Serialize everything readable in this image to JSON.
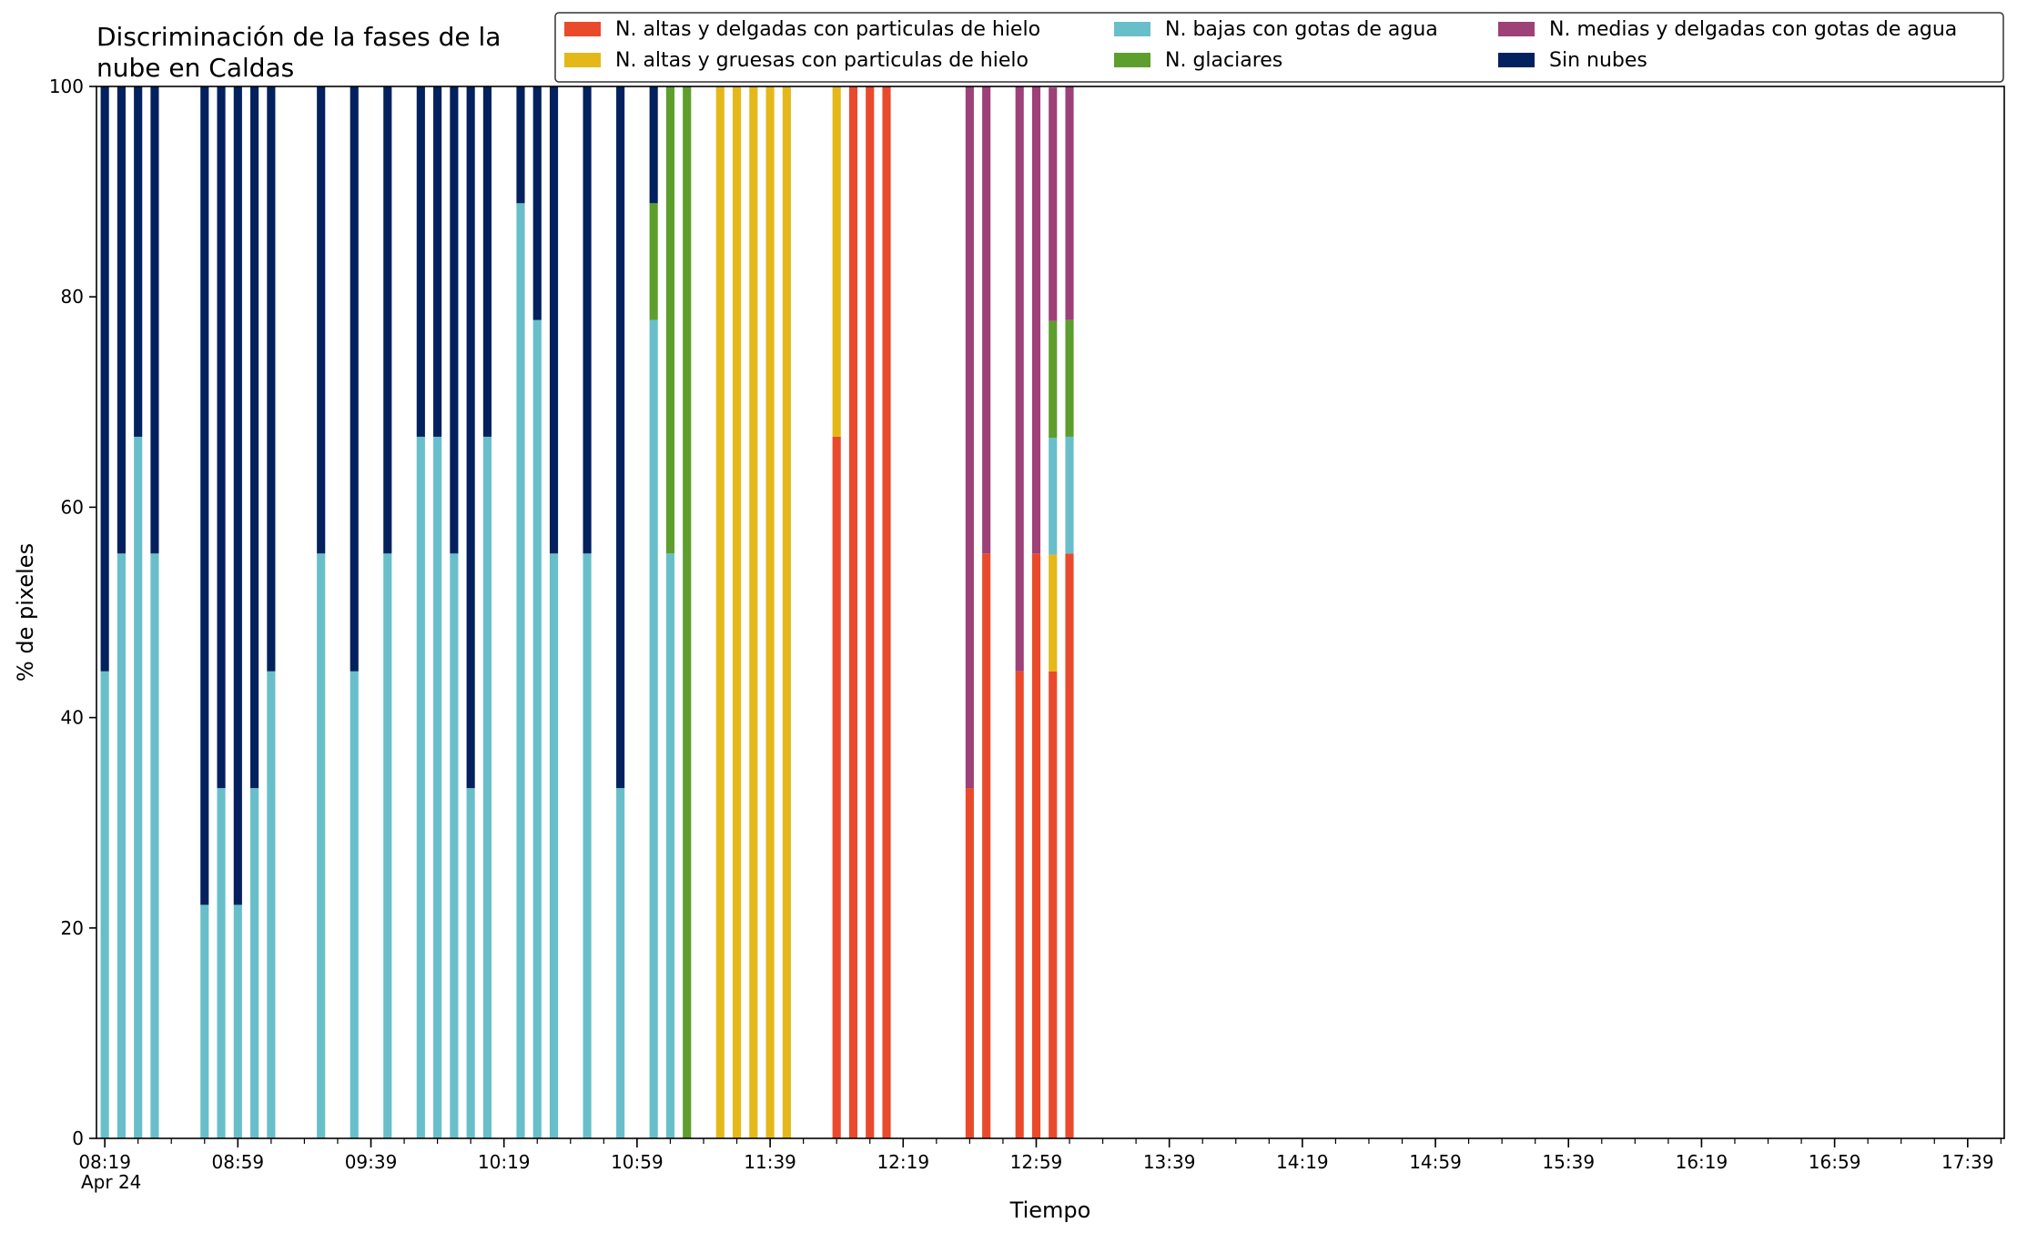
{
  "chart_data": {
    "type": "bar",
    "stacked": true,
    "title_lines": [
      "Discriminación de la fases de la",
      "nube en Caldas"
    ],
    "xlabel": "Tiempo",
    "ylabel": "% de pixeles",
    "ylim": [
      0,
      100
    ],
    "yticks": [
      0,
      20,
      40,
      60,
      80,
      100
    ],
    "grid": false,
    "legend_position": "top-right",
    "x_start": "08:19",
    "x_date_label": "Apr 24",
    "bar_interval_minutes": 5,
    "x_major_ticks": [
      "08:19",
      "08:59",
      "09:39",
      "10:19",
      "10:59",
      "11:39",
      "12:19",
      "12:59",
      "13:39",
      "14:19",
      "14:59",
      "15:39",
      "16:19",
      "16:59",
      "17:39"
    ],
    "x_minor_tick_interval_minutes": 10,
    "x_axis_max": "17:50",
    "series_order": [
      "altas_delgadas",
      "altas_gruesas",
      "bajas",
      "glaciares",
      "medias",
      "sin_nubes"
    ],
    "legend": [
      {
        "key": "altas_delgadas",
        "name": "N. altas y delgadas con particulas de hielo",
        "color": "#ea4a2c"
      },
      {
        "key": "altas_gruesas",
        "name": "N. altas y gruesas con particulas de hielo",
        "color": "#e5b81a"
      },
      {
        "key": "bajas",
        "name": "N. bajas con gotas de agua",
        "color": "#68bfca"
      },
      {
        "key": "glaciares",
        "name": "N. glaciares",
        "color": "#5e9e2d"
      },
      {
        "key": "medias",
        "name": "N. medias y delgadas con gotas de agua",
        "color": "#9d4178"
      },
      {
        "key": "sin_nubes",
        "name": "Sin nubes",
        "color": "#03215e"
      }
    ],
    "bars": [
      {
        "time": "08:19",
        "bajas": 44.4,
        "sin_nubes": 55.6
      },
      {
        "time": "08:24",
        "bajas": 55.6,
        "sin_nubes": 44.4
      },
      {
        "time": "08:29",
        "bajas": 66.7,
        "sin_nubes": 33.3
      },
      {
        "time": "08:34",
        "bajas": 55.6,
        "sin_nubes": 44.4
      },
      {
        "time": "08:49",
        "bajas": 22.2,
        "sin_nubes": 77.8
      },
      {
        "time": "08:54",
        "bajas": 33.3,
        "sin_nubes": 66.7
      },
      {
        "time": "08:59",
        "bajas": 22.2,
        "sin_nubes": 77.8
      },
      {
        "time": "09:04",
        "bajas": 33.3,
        "sin_nubes": 66.7
      },
      {
        "time": "09:09",
        "bajas": 44.4,
        "sin_nubes": 55.6
      },
      {
        "time": "09:24",
        "bajas": 55.6,
        "sin_nubes": 44.4
      },
      {
        "time": "09:34",
        "bajas": 44.4,
        "sin_nubes": 55.6
      },
      {
        "time": "09:44",
        "bajas": 55.6,
        "sin_nubes": 44.4
      },
      {
        "time": "09:54",
        "bajas": 66.7,
        "sin_nubes": 33.3
      },
      {
        "time": "09:59",
        "bajas": 66.7,
        "sin_nubes": 33.3
      },
      {
        "time": "10:04",
        "bajas": 55.6,
        "sin_nubes": 44.4
      },
      {
        "time": "10:09",
        "bajas": 33.3,
        "sin_nubes": 66.7
      },
      {
        "time": "10:14",
        "bajas": 66.7,
        "sin_nubes": 33.3
      },
      {
        "time": "10:24",
        "bajas": 88.9,
        "sin_nubes": 11.1
      },
      {
        "time": "10:29",
        "bajas": 77.8,
        "sin_nubes": 22.2
      },
      {
        "time": "10:34",
        "bajas": 55.6,
        "sin_nubes": 44.4
      },
      {
        "time": "10:44",
        "bajas": 55.6,
        "sin_nubes": 44.4
      },
      {
        "time": "10:54",
        "bajas": 33.3,
        "sin_nubes": 66.7
      },
      {
        "time": "11:04",
        "bajas": 77.8,
        "glaciares": 11.1,
        "sin_nubes": 11.1
      },
      {
        "time": "11:09",
        "bajas": 55.6,
        "glaciares": 44.4
      },
      {
        "time": "11:14",
        "glaciares": 100
      },
      {
        "time": "11:24",
        "altas_gruesas": 100
      },
      {
        "time": "11:29",
        "altas_gruesas": 100
      },
      {
        "time": "11:34",
        "altas_gruesas": 100
      },
      {
        "time": "11:39",
        "altas_gruesas": 100
      },
      {
        "time": "11:44",
        "altas_gruesas": 100
      },
      {
        "time": "11:59",
        "altas_delgadas": 66.7,
        "altas_gruesas": 33.3
      },
      {
        "time": "12:04",
        "altas_delgadas": 100
      },
      {
        "time": "12:09",
        "altas_delgadas": 100
      },
      {
        "time": "12:14",
        "altas_delgadas": 100
      },
      {
        "time": "12:39",
        "altas_delgadas": 33.3,
        "medias": 66.7
      },
      {
        "time": "12:44",
        "altas_delgadas": 55.6,
        "medias": 44.4
      },
      {
        "time": "12:54",
        "altas_delgadas": 44.4,
        "medias": 55.6
      },
      {
        "time": "12:59",
        "altas_delgadas": 55.6,
        "medias": 44.4
      },
      {
        "time": "13:04",
        "altas_delgadas": 44.4,
        "altas_gruesas": 11.1,
        "bajas": 11.1,
        "glaciares": 11.1,
        "medias": 22.2
      },
      {
        "time": "13:09",
        "altas_delgadas": 55.6,
        "bajas": 11.1,
        "glaciares": 11.1,
        "medias": 22.2
      }
    ]
  }
}
